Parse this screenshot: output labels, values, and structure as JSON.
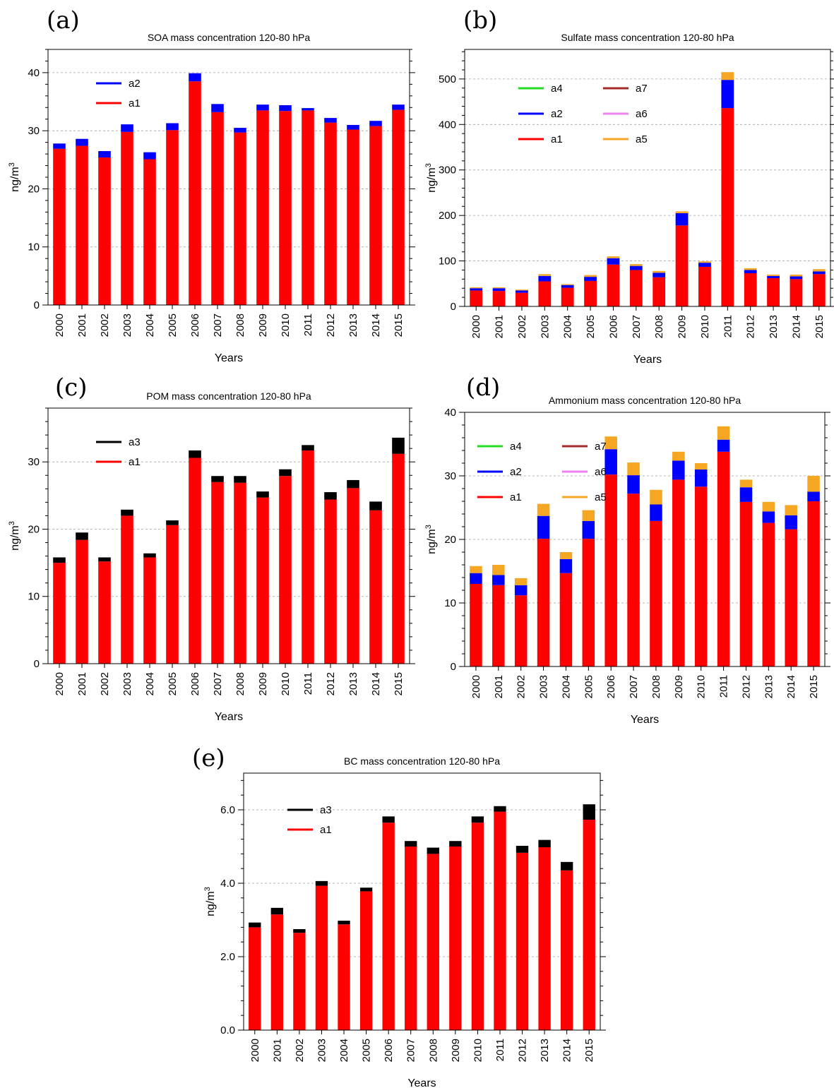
{
  "chart_data": [
    {
      "panel": "(a)",
      "type": "bar",
      "stacked": true,
      "title": "SOA mass concentration 120-80 hPa",
      "xlabel": "Years",
      "ylabel": "ng/m",
      "ylabel_sup": "3",
      "categories": [
        "2000",
        "2001",
        "2002",
        "2003",
        "2004",
        "2005",
        "2006",
        "2007",
        "2008",
        "2009",
        "2010",
        "2011",
        "2012",
        "2013",
        "2014",
        "2015"
      ],
      "ylim": [
        0,
        44
      ],
      "yticks": [
        0,
        10,
        20,
        30,
        40
      ],
      "ytick_labels": [
        "0",
        "10",
        "20",
        "30",
        "40"
      ],
      "grid": true,
      "legend": {
        "columns": 1,
        "entries": [
          "a2",
          "a1"
        ]
      },
      "series": [
        {
          "name": "a1",
          "color": "#ff0000",
          "values": [
            26.9,
            27.4,
            25.4,
            29.8,
            25.1,
            30.1,
            38.5,
            33.2,
            29.7,
            33.5,
            33.4,
            33.5,
            31.4,
            30.2,
            30.8,
            33.6
          ]
        },
        {
          "name": "a2",
          "color": "#0000ff",
          "values": [
            0.9,
            1.2,
            1.1,
            1.3,
            1.2,
            1.2,
            1.4,
            1.4,
            0.8,
            1.0,
            1.0,
            0.4,
            0.8,
            0.8,
            0.9,
            0.9
          ]
        }
      ]
    },
    {
      "panel": "(b)",
      "type": "bar",
      "stacked": true,
      "title": "Sulfate mass concentration 120-80 hPa",
      "xlabel": "Years",
      "ylabel": "ng/m",
      "ylabel_sup": "3",
      "categories": [
        "2000",
        "2001",
        "2002",
        "2003",
        "2004",
        "2005",
        "2006",
        "2007",
        "2008",
        "2009",
        "2010",
        "2011",
        "2012",
        "2013",
        "2014",
        "2015"
      ],
      "ylim": [
        0,
        565
      ],
      "yticks": [
        0,
        100,
        200,
        300,
        400,
        500
      ],
      "ytick_labels": [
        "0",
        "100",
        "200",
        "300",
        "400",
        "500"
      ],
      "grid": true,
      "legend": {
        "columns": 2,
        "entries": [
          "a4",
          "a7",
          "a2",
          "a6",
          "a1",
          "a5"
        ]
      },
      "series": [
        {
          "name": "a1",
          "color": "#ff0000",
          "values": [
            35,
            34,
            30,
            55,
            41,
            56,
            92,
            80,
            64,
            178,
            87,
            436,
            73,
            62,
            60,
            71
          ]
        },
        {
          "name": "a2",
          "color": "#0000ff",
          "values": [
            5,
            6,
            5,
            12,
            6,
            9,
            14,
            9,
            10,
            27,
            9,
            62,
            7,
            5,
            6,
            6
          ]
        },
        {
          "name": "a5",
          "color": "#f5a623",
          "values": [
            2,
            2,
            2,
            4,
            2,
            4,
            4,
            4,
            4,
            4,
            3,
            17,
            4,
            3,
            4,
            5
          ]
        },
        {
          "name": "a4",
          "color": "#22dd22",
          "values": [
            0,
            0,
            0,
            0,
            0,
            0,
            0,
            0,
            0,
            0,
            0,
            0,
            0,
            0,
            0,
            0
          ]
        },
        {
          "name": "a6",
          "color": "#ee82ee",
          "values": [
            0,
            0,
            0,
            0,
            0,
            0,
            0,
            0,
            0,
            0,
            0,
            0,
            0,
            0,
            0,
            0
          ]
        },
        {
          "name": "a7",
          "color": "#a52a2a",
          "values": [
            0,
            0,
            0,
            0,
            0,
            0,
            0,
            0,
            0,
            0,
            0,
            0,
            0,
            0,
            0,
            0
          ]
        }
      ]
    },
    {
      "panel": "(c)",
      "type": "bar",
      "stacked": true,
      "title": "POM mass concentration 120-80 hPa",
      "xlabel": "Years",
      "ylabel": "ng/m",
      "ylabel_sup": "3",
      "categories": [
        "2000",
        "2001",
        "2002",
        "2003",
        "2004",
        "2005",
        "2006",
        "2007",
        "2008",
        "2009",
        "2010",
        "2011",
        "2012",
        "2013",
        "2014",
        "2015"
      ],
      "ylim": [
        0,
        38
      ],
      "yticks": [
        0,
        10,
        20,
        30
      ],
      "ytick_labels": [
        "0",
        "10",
        "20",
        "30"
      ],
      "grid": true,
      "legend": {
        "columns": 1,
        "entries": [
          "a3",
          "a1"
        ]
      },
      "series": [
        {
          "name": "a1",
          "color": "#ff0000",
          "values": [
            15.0,
            18.4,
            15.2,
            22.0,
            15.8,
            20.6,
            30.6,
            27.0,
            26.9,
            24.7,
            27.9,
            31.7,
            24.4,
            26.1,
            22.8,
            31.2
          ]
        },
        {
          "name": "a3",
          "color": "#000000",
          "values": [
            0.8,
            1.1,
            0.6,
            0.9,
            0.6,
            0.7,
            1.1,
            0.9,
            1.0,
            0.9,
            1.0,
            0.8,
            1.1,
            1.2,
            1.3,
            2.4
          ]
        }
      ]
    },
    {
      "panel": "(d)",
      "type": "bar",
      "stacked": true,
      "title": "Ammonium mass concentration 120-80 hPa",
      "xlabel": "Years",
      "ylabel": "ng/m",
      "ylabel_sup": "3",
      "categories": [
        "2000",
        "2001",
        "2002",
        "2003",
        "2004",
        "2005",
        "2006",
        "2007",
        "2008",
        "2009",
        "2010",
        "2011",
        "2012",
        "2013",
        "2014",
        "2015"
      ],
      "ylim": [
        0,
        40
      ],
      "yticks": [
        0,
        10,
        20,
        30,
        40
      ],
      "ytick_labels": [
        "0",
        "10",
        "20",
        "30",
        "40"
      ],
      "grid": true,
      "legend": {
        "columns": 2,
        "entries": [
          "a4",
          "a7",
          "a2",
          "a6",
          "a1",
          "a5"
        ]
      },
      "series": [
        {
          "name": "a1",
          "color": "#ff0000",
          "values": [
            13.0,
            12.8,
            11.2,
            20.1,
            14.7,
            20.1,
            30.2,
            27.2,
            22.9,
            29.4,
            28.3,
            33.8,
            25.9,
            22.6,
            21.6,
            26.0
          ]
        },
        {
          "name": "a2",
          "color": "#0000ff",
          "values": [
            1.7,
            1.6,
            1.6,
            3.6,
            2.2,
            2.8,
            4.0,
            2.9,
            2.6,
            3.0,
            2.7,
            1.9,
            2.3,
            1.8,
            2.2,
            1.5
          ]
        },
        {
          "name": "a5",
          "color": "#f5a623",
          "values": [
            1.1,
            1.6,
            1.1,
            1.9,
            1.1,
            1.7,
            2.0,
            2.0,
            2.3,
            1.4,
            1.0,
            2.1,
            1.2,
            1.5,
            1.6,
            2.5
          ]
        },
        {
          "name": "a4",
          "color": "#22dd22",
          "values": [
            0,
            0,
            0,
            0,
            0,
            0,
            0,
            0,
            0,
            0,
            0,
            0,
            0,
            0,
            0,
            0
          ]
        },
        {
          "name": "a6",
          "color": "#ee82ee",
          "values": [
            0,
            0,
            0,
            0,
            0,
            0,
            0,
            0,
            0,
            0,
            0,
            0,
            0,
            0,
            0,
            0
          ]
        },
        {
          "name": "a7",
          "color": "#a52a2a",
          "values": [
            0,
            0,
            0,
            0,
            0,
            0,
            0,
            0,
            0,
            0,
            0,
            0,
            0,
            0,
            0,
            0
          ]
        }
      ]
    },
    {
      "panel": "(e)",
      "type": "bar",
      "stacked": true,
      "title": "BC mass concentration 120-80 hPa",
      "xlabel": "Years",
      "ylabel": "ng/m",
      "ylabel_sup": "3",
      "categories": [
        "2000",
        "2001",
        "2002",
        "2003",
        "2004",
        "2005",
        "2006",
        "2007",
        "2008",
        "2009",
        "2010",
        "2011",
        "2012",
        "2013",
        "2014",
        "2015"
      ],
      "ylim": [
        0,
        7.0
      ],
      "yticks": [
        0,
        2,
        4,
        6
      ],
      "ytick_labels": [
        "0.0",
        "2.0",
        "4.0",
        "6.0"
      ],
      "grid": true,
      "legend": {
        "columns": 1,
        "entries": [
          "a3",
          "a1"
        ]
      },
      "series": [
        {
          "name": "a1",
          "color": "#ff0000",
          "values": [
            2.8,
            3.15,
            2.65,
            3.93,
            2.88,
            3.78,
            5.65,
            5.0,
            4.8,
            5.0,
            5.65,
            5.95,
            4.83,
            4.98,
            4.35,
            5.73
          ]
        },
        {
          "name": "a3",
          "color": "#000000",
          "values": [
            0.13,
            0.18,
            0.1,
            0.13,
            0.1,
            0.1,
            0.17,
            0.15,
            0.17,
            0.15,
            0.17,
            0.15,
            0.19,
            0.2,
            0.23,
            0.42
          ]
        }
      ]
    }
  ]
}
